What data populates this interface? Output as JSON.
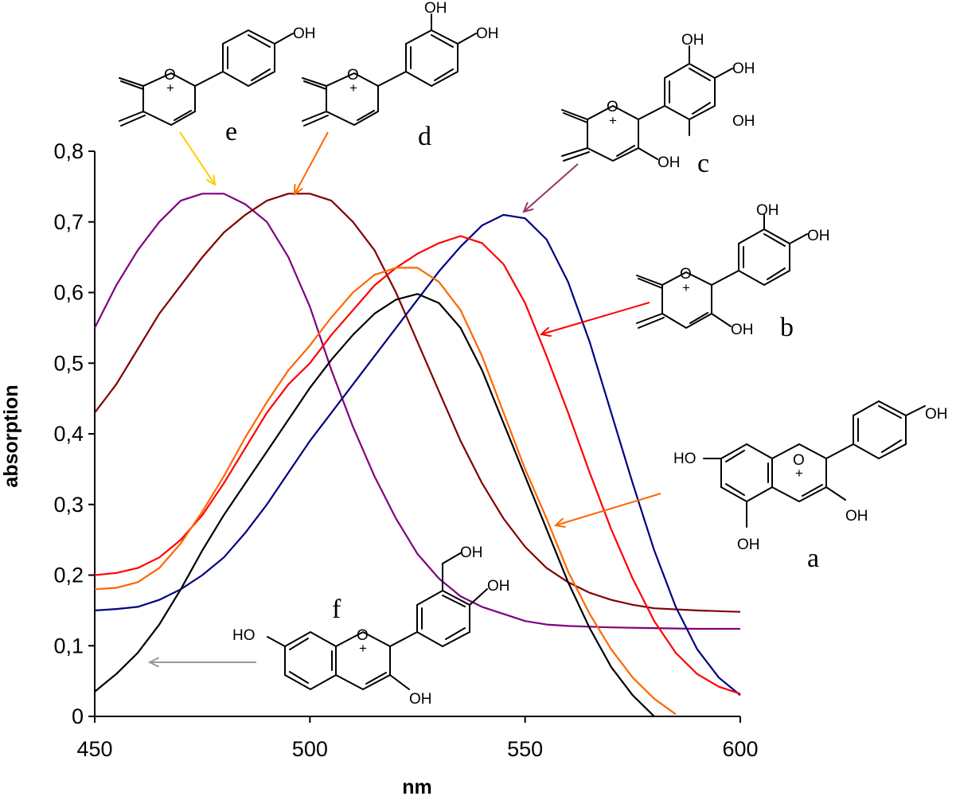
{
  "chart_data": {
    "type": "line",
    "title": "",
    "xlabel": "nm",
    "ylabel": "absorption",
    "xlim": [
      450,
      600
    ],
    "ylim": [
      0,
      0.8
    ],
    "x_ticks": [
      "450",
      "500",
      "550",
      "600"
    ],
    "y_ticks": [
      "0",
      "0,1",
      "0,2",
      "0,3",
      "0,4",
      "0,5",
      "0,6",
      "0,7",
      "0,8"
    ],
    "grid": false,
    "series": [
      {
        "color": "#800080",
        "points": [
          [
            450,
            0.55
          ],
          [
            455,
            0.61
          ],
          [
            460,
            0.66
          ],
          [
            465,
            0.7
          ],
          [
            470,
            0.73
          ],
          [
            475,
            0.74
          ],
          [
            480,
            0.74
          ],
          [
            485,
            0.725
          ],
          [
            490,
            0.7
          ],
          [
            495,
            0.65
          ],
          [
            500,
            0.58
          ],
          [
            505,
            0.49
          ],
          [
            510,
            0.41
          ],
          [
            515,
            0.34
          ],
          [
            520,
            0.28
          ],
          [
            525,
            0.23
          ],
          [
            530,
            0.195
          ],
          [
            535,
            0.17
          ],
          [
            540,
            0.155
          ],
          [
            545,
            0.145
          ],
          [
            550,
            0.135
          ],
          [
            555,
            0.13
          ],
          [
            560,
            0.128
          ],
          [
            570,
            0.126
          ],
          [
            580,
            0.125
          ],
          [
            590,
            0.124
          ],
          [
            600,
            0.124
          ]
        ]
      },
      {
        "color": "#800000",
        "points": [
          [
            450,
            0.43
          ],
          [
            455,
            0.47
          ],
          [
            460,
            0.52
          ],
          [
            465,
            0.57
          ],
          [
            470,
            0.61
          ],
          [
            475,
            0.65
          ],
          [
            480,
            0.685
          ],
          [
            485,
            0.71
          ],
          [
            490,
            0.73
          ],
          [
            495,
            0.74
          ],
          [
            500,
            0.74
          ],
          [
            505,
            0.73
          ],
          [
            510,
            0.7
          ],
          [
            515,
            0.66
          ],
          [
            520,
            0.6
          ],
          [
            525,
            0.53
          ],
          [
            530,
            0.46
          ],
          [
            535,
            0.39
          ],
          [
            540,
            0.33
          ],
          [
            545,
            0.28
          ],
          [
            550,
            0.24
          ],
          [
            555,
            0.21
          ],
          [
            560,
            0.19
          ],
          [
            565,
            0.175
          ],
          [
            570,
            0.165
          ],
          [
            575,
            0.158
          ],
          [
            580,
            0.153
          ],
          [
            590,
            0.15
          ],
          [
            600,
            0.148
          ]
        ]
      },
      {
        "color": "#000080",
        "points": [
          [
            450,
            0.15
          ],
          [
            455,
            0.152
          ],
          [
            460,
            0.155
          ],
          [
            465,
            0.165
          ],
          [
            470,
            0.18
          ],
          [
            475,
            0.2
          ],
          [
            480,
            0.225
          ],
          [
            485,
            0.26
          ],
          [
            490,
            0.3
          ],
          [
            495,
            0.345
          ],
          [
            500,
            0.39
          ],
          [
            505,
            0.43
          ],
          [
            510,
            0.47
          ],
          [
            515,
            0.51
          ],
          [
            520,
            0.55
          ],
          [
            525,
            0.59
          ],
          [
            530,
            0.63
          ],
          [
            535,
            0.665
          ],
          [
            540,
            0.695
          ],
          [
            545,
            0.71
          ],
          [
            550,
            0.705
          ],
          [
            555,
            0.675
          ],
          [
            560,
            0.615
          ],
          [
            565,
            0.53
          ],
          [
            570,
            0.43
          ],
          [
            575,
            0.33
          ],
          [
            580,
            0.235
          ],
          [
            585,
            0.155
          ],
          [
            590,
            0.095
          ],
          [
            595,
            0.055
          ],
          [
            600,
            0.03
          ]
        ]
      },
      {
        "color": "#ff0000",
        "points": [
          [
            450,
            0.2
          ],
          [
            455,
            0.203
          ],
          [
            460,
            0.21
          ],
          [
            465,
            0.225
          ],
          [
            470,
            0.25
          ],
          [
            475,
            0.285
          ],
          [
            480,
            0.33
          ],
          [
            485,
            0.38
          ],
          [
            490,
            0.43
          ],
          [
            495,
            0.47
          ],
          [
            500,
            0.5
          ],
          [
            505,
            0.54
          ],
          [
            510,
            0.575
          ],
          [
            515,
            0.61
          ],
          [
            520,
            0.635
          ],
          [
            525,
            0.655
          ],
          [
            530,
            0.67
          ],
          [
            535,
            0.68
          ],
          [
            540,
            0.67
          ],
          [
            545,
            0.64
          ],
          [
            550,
            0.585
          ],
          [
            555,
            0.51
          ],
          [
            560,
            0.43
          ],
          [
            565,
            0.345
          ],
          [
            570,
            0.265
          ],
          [
            575,
            0.195
          ],
          [
            580,
            0.135
          ],
          [
            585,
            0.09
          ],
          [
            590,
            0.06
          ],
          [
            595,
            0.042
          ],
          [
            600,
            0.032
          ]
        ]
      },
      {
        "color": "#ff6600",
        "points": [
          [
            450,
            0.18
          ],
          [
            455,
            0.182
          ],
          [
            460,
            0.19
          ],
          [
            465,
            0.21
          ],
          [
            470,
            0.245
          ],
          [
            475,
            0.29
          ],
          [
            480,
            0.34
          ],
          [
            485,
            0.395
          ],
          [
            490,
            0.445
          ],
          [
            495,
            0.49
          ],
          [
            500,
            0.525
          ],
          [
            505,
            0.565
          ],
          [
            510,
            0.6
          ],
          [
            515,
            0.625
          ],
          [
            520,
            0.635
          ],
          [
            525,
            0.635
          ],
          [
            530,
            0.615
          ],
          [
            535,
            0.575
          ],
          [
            540,
            0.51
          ],
          [
            545,
            0.43
          ],
          [
            550,
            0.35
          ],
          [
            555,
            0.28
          ],
          [
            560,
            0.205
          ],
          [
            565,
            0.145
          ],
          [
            570,
            0.095
          ],
          [
            575,
            0.055
          ],
          [
            580,
            0.025
          ],
          [
            585,
            0.003
          ]
        ]
      },
      {
        "color": "#000000",
        "points": [
          [
            450,
            0.035
          ],
          [
            455,
            0.06
          ],
          [
            460,
            0.09
          ],
          [
            465,
            0.13
          ],
          [
            470,
            0.18
          ],
          [
            475,
            0.235
          ],
          [
            480,
            0.285
          ],
          [
            485,
            0.33
          ],
          [
            490,
            0.375
          ],
          [
            495,
            0.42
          ],
          [
            500,
            0.465
          ],
          [
            505,
            0.505
          ],
          [
            510,
            0.54
          ],
          [
            515,
            0.57
          ],
          [
            520,
            0.59
          ],
          [
            525,
            0.598
          ],
          [
            530,
            0.585
          ],
          [
            535,
            0.55
          ],
          [
            540,
            0.49
          ],
          [
            545,
            0.415
          ],
          [
            550,
            0.34
          ],
          [
            555,
            0.265
          ],
          [
            560,
            0.19
          ],
          [
            565,
            0.125
          ],
          [
            570,
            0.07
          ],
          [
            575,
            0.03
          ],
          [
            580,
            0.0
          ]
        ]
      }
    ]
  },
  "structures": {
    "a": {
      "letter": "a",
      "oh_top": "OH",
      "oh_left": "HO",
      "oh_right": "OH",
      "oh_bottom": "OH",
      "ring_o": "O",
      "charge": "+"
    },
    "b": {
      "letter": "b",
      "oh_top": "OH",
      "oh_right": "OH",
      "oh_low": "OH",
      "ring_o": "O",
      "charge": "+"
    },
    "c": {
      "letter": "c",
      "oh_top": "OH",
      "oh_mid": "OH",
      "oh_bottom": "OH",
      "oh_low": "OH",
      "ring_o": "O",
      "charge": "+"
    },
    "d": {
      "letter": "d",
      "oh_top": "OH",
      "oh_right": "OH",
      "ring_o": "O",
      "charge": "+"
    },
    "e": {
      "letter": "e",
      "oh_top": "OH",
      "ring_o": "O",
      "charge": "+"
    },
    "f": {
      "letter": "f",
      "oh_top": "OH",
      "oh_right": "OH",
      "oh_left": "HO",
      "oh_bottom": "OH",
      "ring_o": "O",
      "charge": "+"
    }
  },
  "arrow_colors": {
    "e": "#ffcc00",
    "d": "#ff6600",
    "c": "#993366",
    "b": "#ff0000",
    "a": "#ff6600",
    "f": "#999999"
  }
}
